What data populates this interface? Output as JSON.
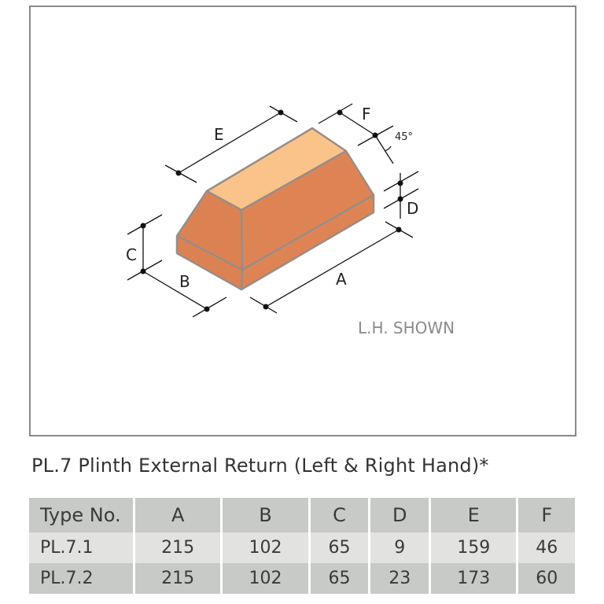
{
  "diagram": {
    "labels": {
      "A": "A",
      "B": "B",
      "C": "C",
      "D": "D",
      "E": "E",
      "F": "F",
      "angle": "45°"
    },
    "note": "L.H. SHOWN",
    "colors": {
      "top_face": "#f9c389",
      "side_face": "#de8454",
      "outline": "#9a8c86",
      "frame": "#8a8a8a"
    }
  },
  "title": "PL.7  Plinth External Return (Left & Right Hand)*",
  "table": {
    "headers": [
      "Type No.",
      "A",
      "B",
      "C",
      "D",
      "E",
      "F"
    ],
    "rows": [
      [
        "PL.7.1",
        "215",
        "102",
        "65",
        "9",
        "159",
        "46"
      ],
      [
        "PL.7.2",
        "215",
        "102",
        "65",
        "23",
        "173",
        "60"
      ]
    ]
  }
}
